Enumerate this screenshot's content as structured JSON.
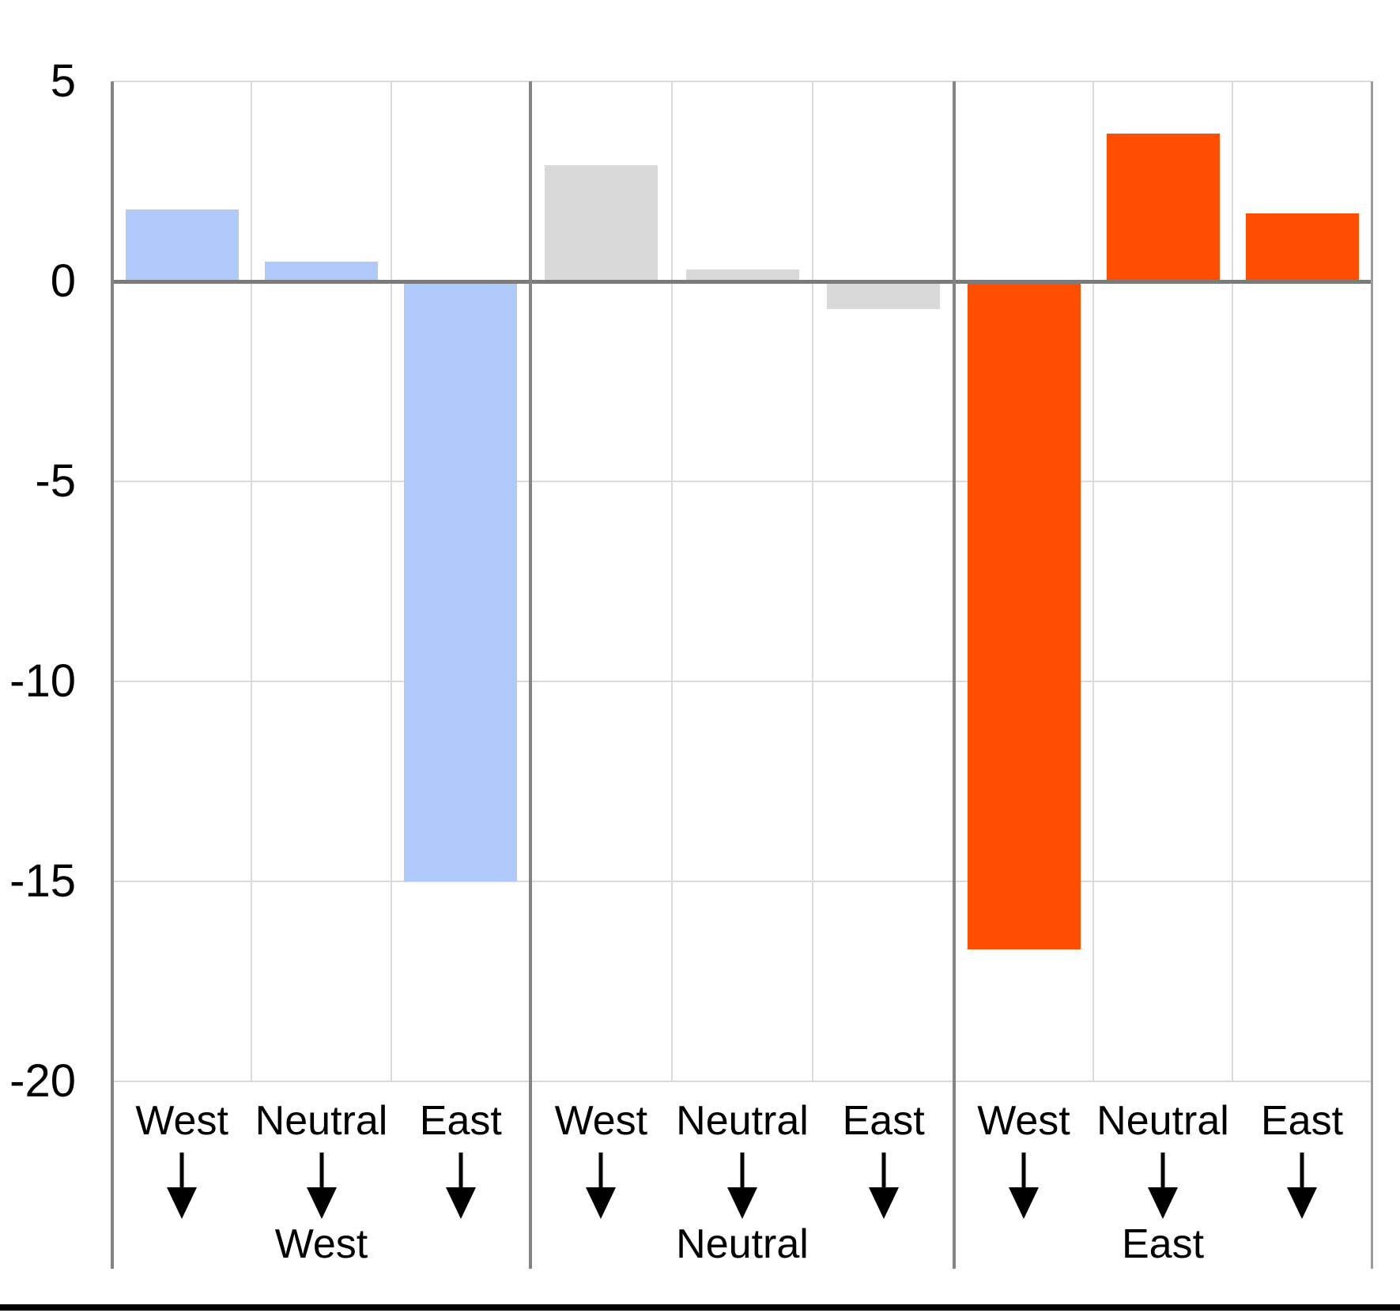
{
  "chart_data": {
    "type": "bar",
    "title": "",
    "xlabel": "",
    "ylabel": "",
    "ylim": [
      -20,
      5
    ],
    "yticks": [
      5,
      0,
      -5,
      -10,
      -15,
      -20
    ],
    "grid": true,
    "legend_position": "none",
    "categories": [
      "West",
      "Neutral",
      "East"
    ],
    "category_arrow": "down-arrow",
    "panels": [
      {
        "label": "West",
        "color": "#aec9fa",
        "values": [
          1.8,
          0.5,
          -15.0
        ]
      },
      {
        "label": "Neutral",
        "color": "#d9d9d9",
        "values": [
          2.9,
          0.3,
          -0.7
        ]
      },
      {
        "label": "East",
        "color": "#ff4e02",
        "values": [
          -16.7,
          3.7,
          1.7
        ]
      }
    ]
  },
  "colors": {
    "background": "#ffffff",
    "blue_bar": "#aec9fa",
    "gray_bar": "#d9d9d9",
    "orange_bar": "#ff4e02",
    "grid_line": "#dadada",
    "zero_line": "#7b7b7b",
    "axis_line": "#848484",
    "right_edge_line": "#9c9c9c",
    "text": "#000000",
    "bottom_border": "#000000"
  }
}
